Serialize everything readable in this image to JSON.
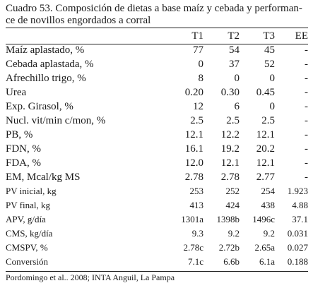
{
  "title_line1": "Cuadro 53. Composición de dietas a base maíz y cebada y performan-",
  "title_line2": "ce de novillos engordados a corral",
  "headers": [
    "",
    "T1",
    "T2",
    "T3",
    "EE"
  ],
  "rows": [
    {
      "label": "Maíz aplastado, %",
      "t1": "77",
      "t2": "54",
      "t3": "45",
      "ee": "-",
      "size": "big"
    },
    {
      "label": "Cebada aplastada, %",
      "t1": "0",
      "t2": "37",
      "t3": "52",
      "ee": "-",
      "size": "big"
    },
    {
      "label": "Afrechillo trigo, %",
      "t1": "8",
      "t2": "0",
      "t3": "0",
      "ee": "-",
      "size": "big"
    },
    {
      "label": "Urea",
      "t1": "0.20",
      "t2": "0.30",
      "t3": "0.45",
      "ee": "-",
      "size": "big"
    },
    {
      "label": "Exp. Girasol, %",
      "t1": "12",
      "t2": "6",
      "t3": "0",
      "ee": "-",
      "size": "big"
    },
    {
      "label": "Nucl. vit/min c/mon, %",
      "t1": "2.5",
      "t2": "2.5",
      "t3": "2.5",
      "ee": "-",
      "size": "big"
    },
    {
      "label": "PB, %",
      "t1": "12.1",
      "t2": "12.2",
      "t3": "12.1",
      "ee": "-",
      "size": "big"
    },
    {
      "label": "FDN, %",
      "t1": "16.1",
      "t2": "19.2",
      "t3": "20.2",
      "ee": "-",
      "size": "big"
    },
    {
      "label": "FDA, %",
      "t1": "12.0",
      "t2": "12.1",
      "t3": "12.1",
      "ee": "-",
      "size": "big"
    },
    {
      "label": "EM, Mcal/kg MS",
      "t1": "2.78",
      "t2": "2.78",
      "t3": "2.77",
      "ee": "-",
      "size": "big"
    },
    {
      "label": "PV inicial, kg",
      "t1": "253",
      "t2": "252",
      "t3": "254",
      "ee": "1.923",
      "size": "small"
    },
    {
      "label": "PV final, kg",
      "t1": "413",
      "t2": "424",
      "t3": "438",
      "ee": "4.88",
      "size": "small"
    },
    {
      "label": "APV, g/día",
      "t1": "1301a",
      "t2": "1398b",
      "t3": "1496c",
      "ee": "37.1",
      "size": "small"
    },
    {
      "label": "CMS, kg/día",
      "t1": "9.3",
      "t2": "9.2",
      "t3": "9.2",
      "ee": "0.031",
      "size": "small"
    },
    {
      "label": "CMSPV, %",
      "t1": "2.78c",
      "t2": "2.72b",
      "t3": "2.65a",
      "ee": "0.027",
      "size": "small"
    },
    {
      "label": "Conversión",
      "t1": "7.1c",
      "t2": "6.6b",
      "t3": "6.1a",
      "ee": "0.188",
      "size": "small"
    }
  ],
  "footer": "Pordomingo et al.. 2008;  INTA Anguil, La Pampa"
}
